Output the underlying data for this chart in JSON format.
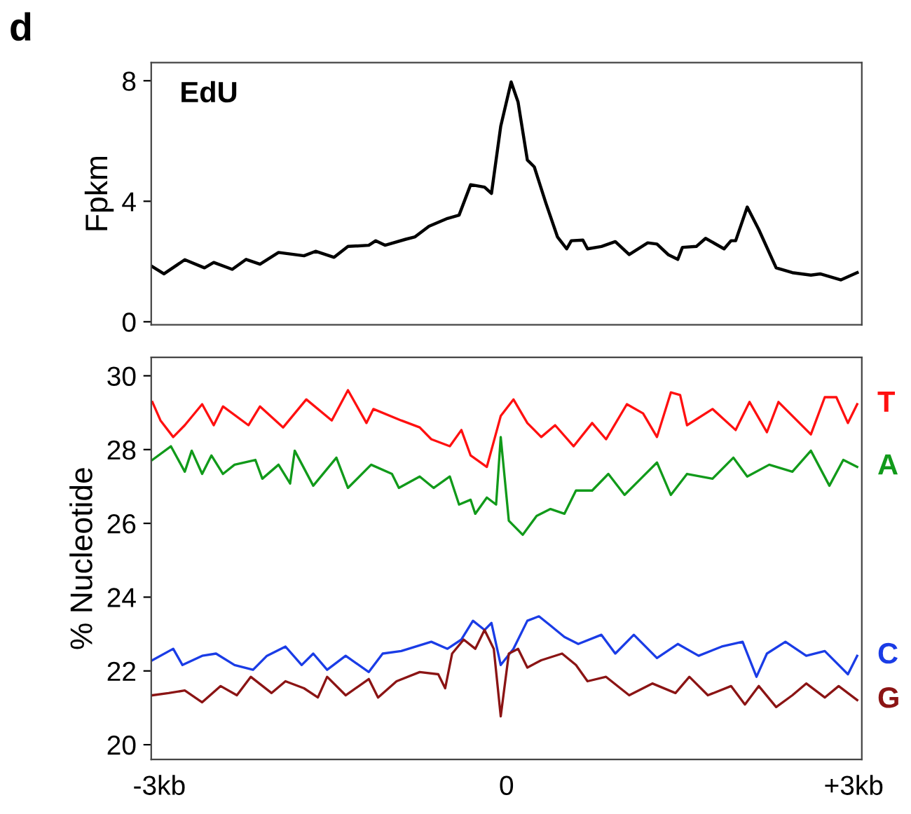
{
  "chart_data": [
    {
      "type": "line",
      "title": "EdU",
      "ylabel": "Fpkm",
      "annotations": [
        "d"
      ],
      "xlim": [
        -3.07,
        3.07
      ],
      "ylim": [
        -0.1,
        8.6
      ],
      "yticks": [
        0,
        4,
        8
      ],
      "tick_labels": "y",
      "grid": false,
      "legend": false,
      "marker": "none",
      "line_style": "solid",
      "series": [
        {
          "color": "#000000",
          "x": [
            -3.06,
            -2.96,
            -2.78,
            -2.61,
            -2.53,
            -2.37,
            -2.25,
            -2.13,
            -1.97,
            -1.75,
            -1.65,
            -1.49,
            -1.37,
            -1.19,
            -1.13,
            -1.05,
            -0.87,
            -0.79,
            -0.67,
            -0.51,
            -0.41,
            -0.31,
            -0.19,
            -0.13,
            -0.05,
            0.04,
            0.1,
            0.18,
            0.24,
            0.34,
            0.44,
            0.52,
            0.56,
            0.66,
            0.7,
            0.82,
            0.94,
            1.06,
            1.22,
            1.3,
            1.4,
            1.48,
            1.52,
            1.64,
            1.72,
            1.88,
            1.94,
            1.98,
            2.08,
            2.18,
            2.33,
            2.47,
            2.63,
            2.71,
            2.89,
            3.03
          ],
          "values": [
            1.83,
            1.59,
            2.06,
            1.79,
            1.97,
            1.74,
            2.07,
            1.91,
            2.3,
            2.19,
            2.34,
            2.14,
            2.5,
            2.54,
            2.69,
            2.54,
            2.74,
            2.82,
            3.17,
            3.43,
            3.54,
            4.55,
            4.47,
            4.26,
            6.49,
            7.96,
            7.29,
            5.37,
            5.14,
            3.94,
            2.82,
            2.42,
            2.69,
            2.71,
            2.42,
            2.5,
            2.66,
            2.23,
            2.62,
            2.58,
            2.22,
            2.07,
            2.47,
            2.5,
            2.77,
            2.42,
            2.69,
            2.69,
            3.81,
            3.06,
            1.79,
            1.63,
            1.55,
            1.59,
            1.39,
            1.63
          ]
        }
      ]
    },
    {
      "type": "line",
      "ylabel": "% Nucleotide",
      "xlim": [
        -3.07,
        3.07
      ],
      "ylim": [
        19.6,
        30.5
      ],
      "yticks": [
        20,
        22,
        24,
        26,
        28,
        30
      ],
      "xticks": [
        {
          "value": -3,
          "label": "-3kb"
        },
        0,
        {
          "value": 3,
          "label": "+3kb"
        }
      ],
      "grid": false,
      "legend": false,
      "marker": "none",
      "line_style": "solid",
      "series": [
        {
          "name": "T",
          "color": "#ff1010",
          "x": [
            -3.06,
            -2.99,
            -2.88,
            -2.78,
            -2.63,
            -2.53,
            -2.45,
            -2.23,
            -2.13,
            -1.93,
            -1.73,
            -1.51,
            -1.37,
            -1.21,
            -1.15,
            -0.91,
            -0.75,
            -0.65,
            -0.49,
            -0.39,
            -0.31,
            -0.17,
            -0.05,
            0.06,
            0.18,
            0.3,
            0.42,
            0.58,
            0.74,
            0.86,
            1.04,
            1.18,
            1.3,
            1.42,
            1.5,
            1.56,
            1.78,
            1.98,
            2.1,
            2.25,
            2.35,
            2.63,
            2.75,
            2.85,
            2.95,
            3.03
          ],
          "values": [
            29.29,
            28.79,
            28.34,
            28.66,
            29.23,
            28.66,
            29.17,
            28.66,
            29.17,
            28.6,
            29.36,
            28.79,
            29.61,
            28.72,
            29.1,
            28.79,
            28.6,
            28.28,
            28.09,
            28.53,
            27.84,
            27.53,
            28.91,
            29.36,
            28.72,
            28.34,
            28.66,
            28.09,
            28.72,
            28.28,
            29.23,
            28.98,
            28.34,
            29.55,
            29.48,
            28.66,
            29.1,
            28.53,
            29.29,
            28.47,
            29.29,
            28.41,
            29.42,
            29.42,
            28.72,
            29.23
          ]
        },
        {
          "name": "A",
          "color": "#119a1a",
          "x": [
            -3.06,
            -2.9,
            -2.78,
            -2.72,
            -2.63,
            -2.55,
            -2.45,
            -2.35,
            -2.17,
            -2.11,
            -1.97,
            -1.87,
            -1.83,
            -1.67,
            -1.47,
            -1.37,
            -1.17,
            -0.99,
            -0.93,
            -0.75,
            -0.63,
            -0.49,
            -0.41,
            -0.31,
            -0.27,
            -0.17,
            -0.09,
            -0.05,
            0.02,
            0.14,
            0.26,
            0.38,
            0.5,
            0.6,
            0.74,
            0.88,
            1.02,
            1.16,
            1.3,
            1.42,
            1.56,
            1.78,
            1.96,
            2.08,
            2.27,
            2.47,
            2.63,
            2.79,
            2.91,
            3.03
          ],
          "values": [
            27.72,
            28.09,
            27.4,
            27.97,
            27.34,
            27.84,
            27.34,
            27.59,
            27.72,
            27.21,
            27.59,
            27.08,
            27.97,
            27.02,
            27.78,
            26.96,
            27.59,
            27.34,
            26.96,
            27.27,
            26.96,
            27.27,
            26.51,
            26.64,
            26.26,
            26.7,
            26.51,
            28.34,
            26.07,
            25.69,
            26.2,
            26.39,
            26.26,
            26.89,
            26.89,
            27.34,
            26.77,
            27.21,
            27.65,
            26.77,
            27.34,
            27.21,
            27.78,
            27.27,
            27.59,
            27.4,
            27.97,
            27.02,
            27.72,
            27.53
          ]
        },
        {
          "name": "C",
          "color": "#1a3ce6",
          "x": [
            -3.06,
            -2.88,
            -2.8,
            -2.63,
            -2.51,
            -2.35,
            -2.19,
            -2.07,
            -1.91,
            -1.77,
            -1.67,
            -1.55,
            -1.39,
            -1.19,
            -1.07,
            -0.91,
            -0.65,
            -0.51,
            -0.39,
            -0.29,
            -0.19,
            -0.13,
            -0.05,
            0.06,
            0.18,
            0.28,
            0.38,
            0.5,
            0.62,
            0.82,
            0.94,
            1.1,
            1.3,
            1.48,
            1.66,
            1.86,
            2.04,
            2.16,
            2.25,
            2.41,
            2.59,
            2.75,
            2.95,
            3.03
          ],
          "values": [
            22.29,
            22.6,
            22.16,
            22.41,
            22.47,
            22.16,
            22.03,
            22.41,
            22.66,
            22.16,
            22.47,
            22.03,
            22.41,
            21.97,
            22.47,
            22.54,
            22.79,
            22.6,
            22.85,
            23.36,
            23.11,
            23.3,
            22.16,
            22.6,
            23.36,
            23.48,
            23.23,
            22.92,
            22.73,
            22.98,
            22.47,
            22.98,
            22.35,
            22.73,
            22.41,
            22.66,
            22.79,
            21.84,
            22.47,
            22.79,
            22.41,
            22.54,
            21.91,
            22.41
          ]
        },
        {
          "name": "G",
          "color": "#8b1414",
          "x": [
            -3.06,
            -2.92,
            -2.78,
            -2.63,
            -2.47,
            -2.33,
            -2.21,
            -2.03,
            -1.91,
            -1.75,
            -1.63,
            -1.55,
            -1.39,
            -1.19,
            -1.11,
            -0.95,
            -0.75,
            -0.59,
            -0.53,
            -0.47,
            -0.37,
            -0.27,
            -0.19,
            -0.11,
            -0.05,
            0.02,
            0.1,
            0.18,
            0.3,
            0.48,
            0.6,
            0.7,
            0.86,
            1.06,
            1.26,
            1.46,
            1.58,
            1.74,
            1.94,
            2.06,
            2.18,
            2.33,
            2.47,
            2.59,
            2.75,
            2.87,
            3.03
          ],
          "values": [
            21.34,
            21.4,
            21.47,
            21.15,
            21.59,
            21.34,
            21.84,
            21.4,
            21.72,
            21.53,
            21.28,
            21.84,
            21.34,
            21.78,
            21.28,
            21.72,
            21.97,
            21.91,
            21.53,
            22.47,
            22.85,
            22.6,
            23.11,
            22.6,
            20.77,
            22.47,
            22.6,
            22.09,
            22.29,
            22.47,
            22.16,
            21.72,
            21.84,
            21.34,
            21.66,
            21.4,
            21.84,
            21.34,
            21.59,
            21.09,
            21.59,
            21.02,
            21.34,
            21.66,
            21.28,
            21.59,
            21.21
          ]
        }
      ]
    }
  ]
}
